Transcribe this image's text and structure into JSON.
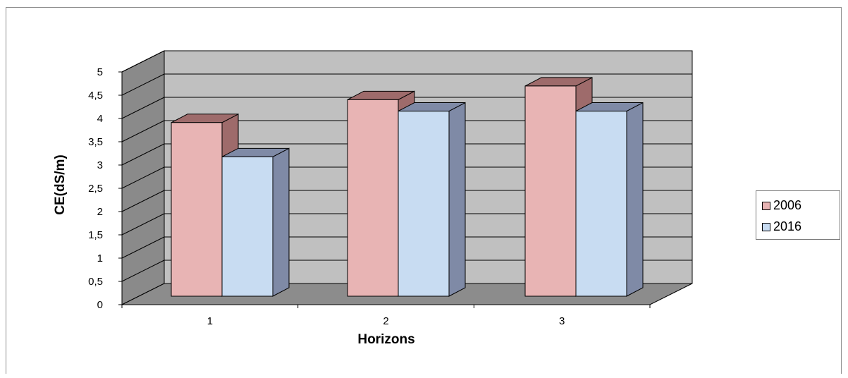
{
  "chart_data": {
    "type": "bar",
    "style": "3d-clustered-column",
    "categories": [
      "1",
      "2",
      "3"
    ],
    "series": [
      {
        "name": "2006",
        "values": [
          3.8,
          4.3,
          4.6
        ],
        "color": "#e8b4b4",
        "side_color": "#9e6b6b"
      },
      {
        "name": "2016",
        "values": [
          3.05,
          4.05,
          4.05
        ],
        "color": "#c8dcf2",
        "side_color": "#7f8aa6"
      }
    ],
    "xlabel": "Horizons",
    "ylabel": "CE(dS/m)",
    "ylim": [
      0,
      5
    ],
    "yticks": [
      "0",
      "0,5",
      "1",
      "1,5",
      "2",
      "2,5",
      "3",
      "3,5",
      "4",
      "4,5",
      "5"
    ],
    "grid": true,
    "wall_color": "#c0c0c0",
    "floor_color": "#8c8c8c",
    "legend_position": "right"
  }
}
